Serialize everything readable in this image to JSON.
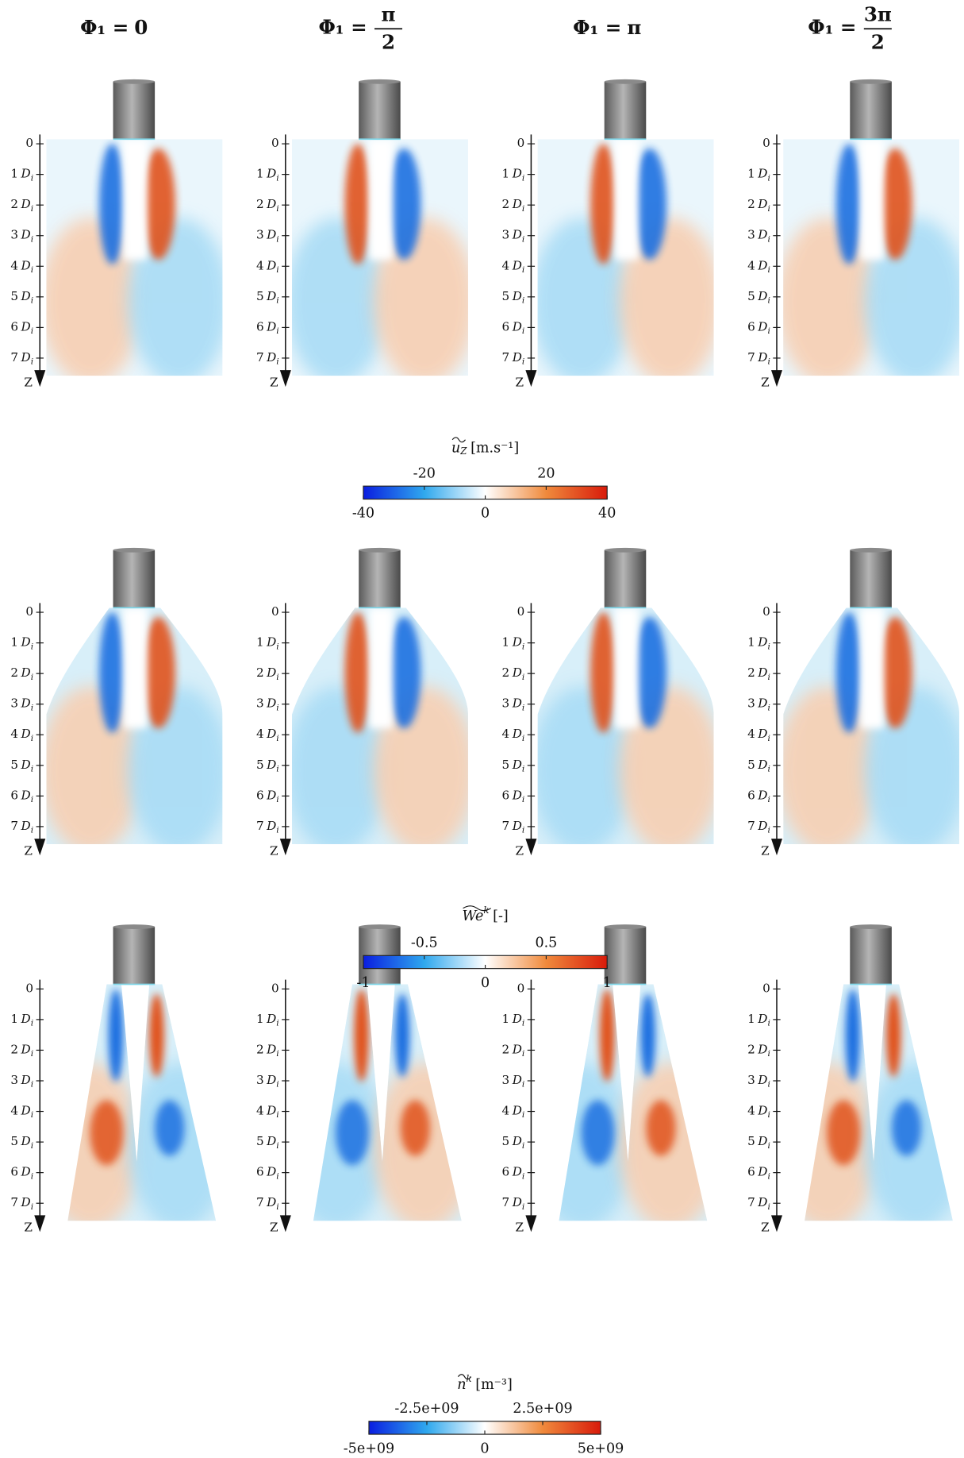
{
  "headers": [
    {
      "prefix": "Φ₁ =",
      "value": "0"
    },
    {
      "prefix": "Φ₁ =",
      "numerator": "π",
      "denominator": "2"
    },
    {
      "prefix": "Φ₁ =",
      "value": "π"
    },
    {
      "prefix": "Φ₁ =",
      "numerator": "3π",
      "denominator": "2"
    }
  ],
  "axis": {
    "ticks": [
      0,
      1,
      2,
      3,
      4,
      5,
      6,
      7
    ],
    "unit": "D",
    "unit_subscript": "i",
    "arrow_label": "Z"
  },
  "colormap": [
    "#0a1ee0",
    "#2fa8ee",
    "#ffffff",
    "#f08a3c",
    "#d81a0a"
  ],
  "colorbars": [
    {
      "symbol": "u",
      "subscript": "Z",
      "unit": "[m.s⁻¹]",
      "lim": [
        -40,
        40
      ],
      "upper_ticks": [
        -20,
        20
      ],
      "lower_ticks": [
        -40,
        0,
        40
      ]
    },
    {
      "symbol": "We",
      "superscript": "k",
      "unit": "[-]",
      "lim": [
        -1,
        1
      ],
      "upper_ticks": [
        -0.5,
        0.5
      ],
      "lower_ticks": [
        -1,
        0,
        1
      ]
    },
    {
      "symbol": "n",
      "superscript": "k",
      "unit": "[m⁻³]",
      "lim": [
        -5000000000,
        5000000000
      ],
      "upper_ticks": [
        {
          "value": -2500000000,
          "label": "-2.5e+09"
        },
        {
          "value": 2500000000,
          "label": "2.5e+09"
        }
      ],
      "lower_ticks": [
        {
          "value": -5000000000,
          "label": "-5e+09"
        },
        0,
        {
          "value": 5000000000,
          "label": "5e+09"
        }
      ]
    }
  ]
}
